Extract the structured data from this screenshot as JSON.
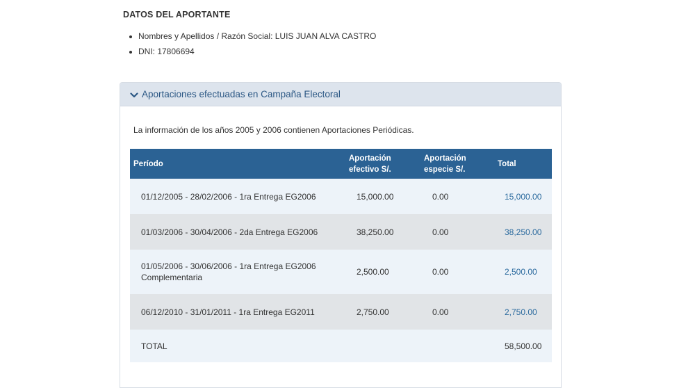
{
  "aportante": {
    "title": "DATOS DEL APORTANTE",
    "items": [
      "Nombres y Apellidos / Razón Social: LUIS JUAN ALVA CASTRO",
      "DNI: 17806694"
    ]
  },
  "panel": {
    "title": "Aportaciones efectuadas en Campaña Electoral",
    "icon": "chevron-down-icon",
    "note": "La información de los años 2005 y 2006 contienen Aportaciones Periódicas."
  },
  "table": {
    "headers": {
      "periodo": "Período",
      "efectivo_1": "Aportación",
      "efectivo_2": "efectivo S/.",
      "especie_1": "Aportación",
      "especie_2": "especie S/.",
      "total": "Total"
    },
    "rows": [
      {
        "periodo_1": "01/12/2005 - 28/02/2006 - 1ra Entrega EG2006",
        "periodo_2": "",
        "efectivo": "15,000.00",
        "especie": "0.00",
        "total": "15,000.00"
      },
      {
        "periodo_1": "01/03/2006 - 30/04/2006 - 2da Entrega EG2006",
        "periodo_2": "",
        "efectivo": "38,250.00",
        "especie": "0.00",
        "total": "38,250.00"
      },
      {
        "periodo_1": "01/05/2006 - 30/06/2006 - 1ra Entrega EG2006",
        "periodo_2": "Complementaria",
        "efectivo": "2,500.00",
        "especie": "0.00",
        "total": "2,500.00"
      },
      {
        "periodo_1": "06/12/2010 - 31/01/2011 - 1ra Entrega EG2011",
        "periodo_2": "",
        "efectivo": "2,750.00",
        "especie": "0.00",
        "total": "2,750.00"
      }
    ],
    "total_row": {
      "label": "TOTAL",
      "value": "58,500.00"
    }
  },
  "colors": {
    "header_bg": "#2b6294",
    "panel_header_bg": "#dde4ed",
    "link": "#2b6a9e",
    "row_light": "#edf3f9",
    "row_grey": "#e1e4e7"
  }
}
